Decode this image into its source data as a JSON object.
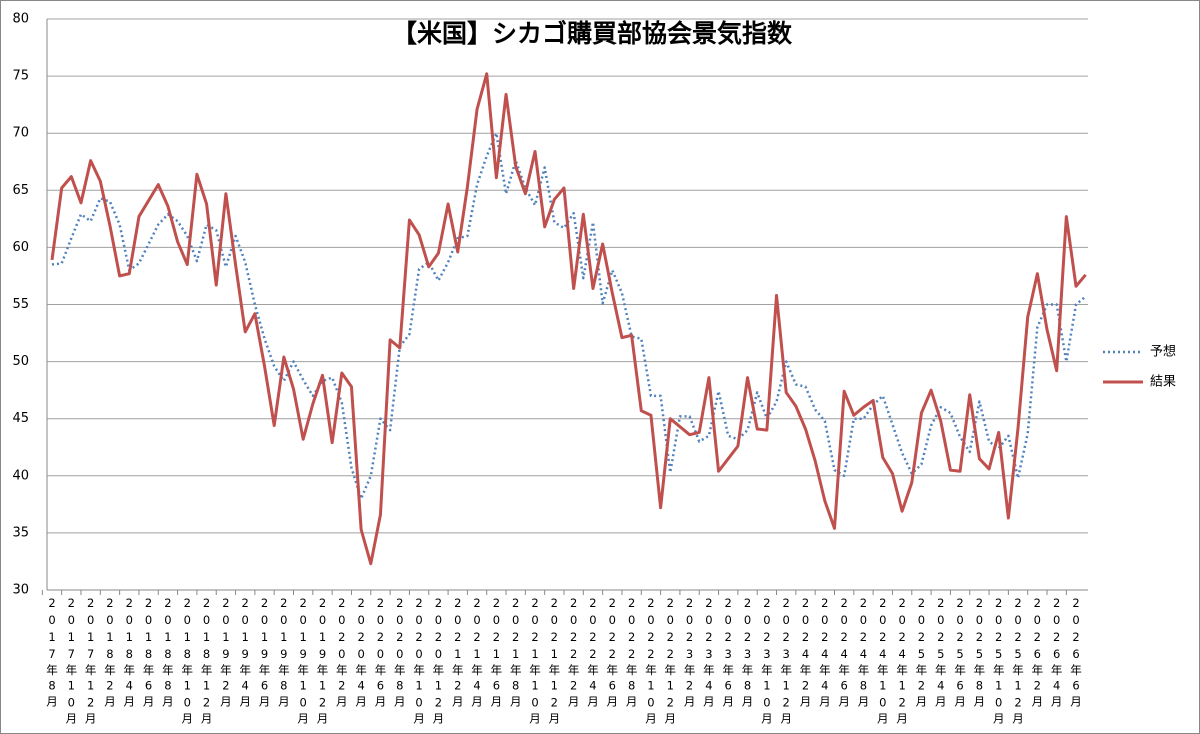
{
  "chart_data": {
    "type": "line",
    "title": "【米国】シカゴ購買部協会景気指数",
    "categories": [
      "2017年8月",
      null,
      "2017年10月",
      null,
      "2017年12月",
      null,
      "2018年2月",
      null,
      "2018年4月",
      null,
      "2018年6月",
      null,
      "2018年8月",
      null,
      "2018年10月",
      null,
      "2018年12月",
      null,
      "2019年2月",
      null,
      "2019年4月",
      null,
      "2019年6月",
      null,
      "2019年8月",
      null,
      "2019年10月",
      null,
      "2019年12月",
      null,
      "2020年2月",
      null,
      "2020年4月",
      null,
      "2020年6月",
      null,
      "2020年8月",
      null,
      "2020年10月",
      null,
      "2020年12月",
      null,
      "2021年2月",
      null,
      "2021年4月",
      null,
      "2021年6月",
      null,
      "2021年8月",
      null,
      "2021年10月",
      null,
      "2021年12月",
      null,
      "2022年2月",
      null,
      "2022年4月",
      null,
      "2022年6月",
      null,
      "2022年8月",
      null,
      "2022年10月",
      null,
      "2022年12月",
      null,
      "2023年2月",
      null,
      "2023年4月",
      null,
      "2023年6月",
      null,
      "2023年8月",
      null,
      "2023年10月",
      null,
      "2023年12月",
      null,
      "2024年2月",
      null,
      "2024年4月",
      null,
      "2024年6月",
      null,
      "2024年8月",
      null,
      "2024年10月",
      null,
      "2024年12月",
      null,
      "2025年2月",
      null,
      "2025年4月",
      null,
      "2025年6月",
      null,
      "2025年8月",
      null,
      "2025年10月",
      null,
      "2025年12月",
      null,
      "2026年2月",
      null,
      "2026年4月",
      null,
      "2026年6月",
      null
    ],
    "series": [
      {
        "name": "予想",
        "color": "#4f81bd",
        "dash": "dotted",
        "values": [
          58.5,
          58.6,
          60.8,
          62.9,
          62.3,
          64.3,
          64.0,
          62.0,
          58.0,
          58.6,
          60.3,
          62.0,
          62.9,
          62.3,
          61.0,
          58.8,
          62.0,
          61.5,
          58.3,
          61.0,
          58.7,
          55.0,
          52.0,
          49.6,
          48.3,
          50.0,
          48.4,
          47.0,
          48.3,
          48.6,
          46.4,
          40.7,
          38.0,
          40.0,
          45.0,
          44.0,
          51.3,
          52.4,
          58.1,
          58.7,
          57.1,
          58.7,
          60.8,
          61.0,
          65.5,
          68.0,
          70.0,
          64.7,
          67.6,
          65.2,
          63.7,
          67.0,
          62.2,
          61.7,
          63.0,
          57.3,
          62.2,
          55.1,
          58.0,
          56.0,
          52.2,
          52.0,
          47.0,
          47.0,
          40.3,
          45.2,
          45.2,
          43.0,
          43.5,
          47.4,
          43.5,
          43.2,
          44.0,
          47.3,
          45.0,
          46.5,
          50.0,
          48.0,
          47.8,
          45.8,
          44.8,
          40.5,
          40.0,
          45.0,
          45.0,
          46.2,
          47.0,
          44.5,
          42.0,
          40.2,
          41.0,
          44.4,
          46.0,
          45.5,
          43.4,
          42.1,
          46.5,
          43.0,
          42.4,
          43.5,
          39.8,
          43.7,
          53.0,
          55.0,
          55.0,
          50.0,
          55.0,
          55.7
        ]
      },
      {
        "name": "結果",
        "color": "#c0504d",
        "dash": "solid",
        "values": [
          58.9,
          65.2,
          66.2,
          63.9,
          67.6,
          65.8,
          61.9,
          57.5,
          57.7,
          62.7,
          64.1,
          65.5,
          63.6,
          60.5,
          58.5,
          66.4,
          63.8,
          56.7,
          64.7,
          58.5,
          52.6,
          54.2,
          49.6,
          44.4,
          50.4,
          47.6,
          43.2,
          46.3,
          48.8,
          42.9,
          49.0,
          47.8,
          35.3,
          32.3,
          36.6,
          51.9,
          51.2,
          62.4,
          61.1,
          58.3,
          59.5,
          63.8,
          59.6,
          65.3,
          72.1,
          75.2,
          66.1,
          73.4,
          67.1,
          64.7,
          68.4,
          61.8,
          64.2,
          65.2,
          56.4,
          62.9,
          56.4,
          60.3,
          56.0,
          52.1,
          52.3,
          45.7,
          45.3,
          37.2,
          45.0,
          44.3,
          43.6,
          43.8,
          48.6,
          40.4,
          41.5,
          42.6,
          48.6,
          44.1,
          44.0,
          55.8,
          47.3,
          46.1,
          44.1,
          41.3,
          37.8,
          35.4,
          47.4,
          45.3,
          46.0,
          46.6,
          41.6,
          40.2,
          36.9,
          39.4,
          45.5,
          47.5,
          44.8,
          40.5,
          40.4,
          47.1,
          41.5,
          40.6,
          43.8,
          36.3,
          44.2,
          53.9,
          57.7,
          52.8,
          49.2,
          62.7,
          56.6,
          57.6
        ]
      }
    ],
    "ylim": [
      30,
      80
    ],
    "yticks": [
      30,
      35,
      40,
      45,
      50,
      55,
      60,
      65,
      70,
      75,
      80
    ],
    "grid": true,
    "legend": "right"
  }
}
